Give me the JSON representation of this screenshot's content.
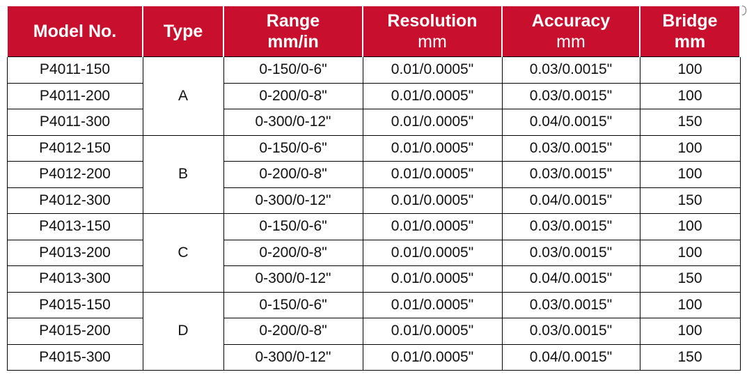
{
  "columns": [
    {
      "line1": "Model No.",
      "line2": ""
    },
    {
      "line1": "Type",
      "line2": ""
    },
    {
      "line1": "Range",
      "line2": "mm/in",
      "line2_bold": true
    },
    {
      "line1": "Resolution",
      "line2": "mm",
      "line2_bold": false
    },
    {
      "line1": "Accuracy",
      "line2": "mm",
      "line2_bold": false
    },
    {
      "line1": "Bridge",
      "line2": "mm",
      "line2_bold": true
    }
  ],
  "groups": [
    {
      "type": "A",
      "rows": [
        {
          "model": "P4011-150",
          "range": "0-150/0-6\"",
          "resolution": "0.01/0.0005\"",
          "accuracy": "0.03/0.0015\"",
          "bridge": "100"
        },
        {
          "model": "P4011-200",
          "range": "0-200/0-8\"",
          "resolution": "0.01/0.0005\"",
          "accuracy": "0.03/0.0015\"",
          "bridge": "100"
        },
        {
          "model": "P4011-300",
          "range": "0-300/0-12\"",
          "resolution": "0.01/0.0005\"",
          "accuracy": "0.04/0.0015\"",
          "bridge": "150"
        }
      ]
    },
    {
      "type": "B",
      "rows": [
        {
          "model": "P4012-150",
          "range": "0-150/0-6\"",
          "resolution": "0.01/0.0005\"",
          "accuracy": "0.03/0.0015\"",
          "bridge": "100"
        },
        {
          "model": "P4012-200",
          "range": "0-200/0-8\"",
          "resolution": "0.01/0.0005\"",
          "accuracy": "0.03/0.0015\"",
          "bridge": "100"
        },
        {
          "model": "P4012-300",
          "range": "0-300/0-12\"",
          "resolution": "0.01/0.0005\"",
          "accuracy": "0.04/0.0015\"",
          "bridge": "150"
        }
      ]
    },
    {
      "type": "C",
      "rows": [
        {
          "model": "P4013-150",
          "range": "0-150/0-6\"",
          "resolution": "0.01/0.0005\"",
          "accuracy": "0.03/0.0015\"",
          "bridge": "100"
        },
        {
          "model": "P4013-200",
          "range": "0-200/0-8\"",
          "resolution": "0.01/0.0005\"",
          "accuracy": "0.03/0.0015\"",
          "bridge": "100"
        },
        {
          "model": "P4013-300",
          "range": "0-300/0-12\"",
          "resolution": "0.01/0.0005\"",
          "accuracy": "0.04/0.0015\"",
          "bridge": "150"
        }
      ]
    },
    {
      "type": "D",
      "rows": [
        {
          "model": "P4015-150",
          "range": "0-150/0-6\"",
          "resolution": "0.01/0.0005\"",
          "accuracy": "0.03/0.0015\"",
          "bridge": "100"
        },
        {
          "model": "P4015-200",
          "range": "0-200/0-8\"",
          "resolution": "0.01/0.0005\"",
          "accuracy": "0.03/0.0015\"",
          "bridge": "100"
        },
        {
          "model": "P4015-300",
          "range": "0-300/0-12\"",
          "resolution": "0.01/0.0005\"",
          "accuracy": "0.04/0.0015\"",
          "bridge": "150"
        }
      ]
    }
  ],
  "colors": {
    "header_bg": "#c8102e",
    "header_text": "#ffffff",
    "border": "#000000"
  }
}
